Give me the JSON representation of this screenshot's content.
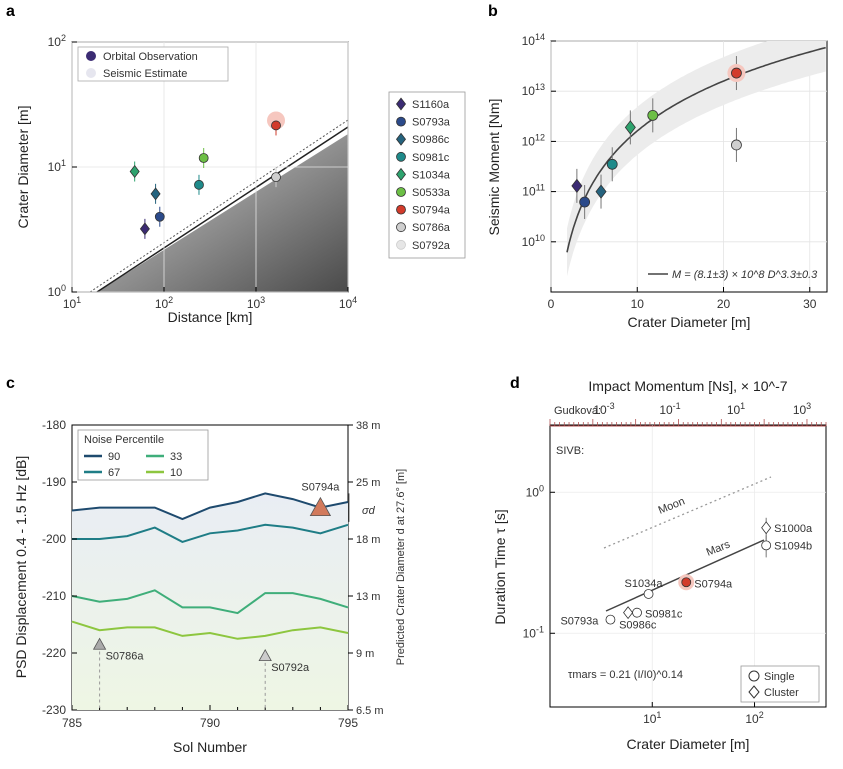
{
  "panels": {
    "a": "a",
    "b": "b",
    "c": "c",
    "d": "d"
  },
  "chart_data": [
    {
      "id": "a",
      "type": "scatter",
      "xscale": "log",
      "yscale": "log",
      "xlim": [
        10,
        10000
      ],
      "ylim": [
        1,
        100
      ],
      "xlabel": "Distance [km]",
      "ylabel": "Crater Diameter [m]",
      "xticks": [
        "10^1",
        "10^2",
        "10^3",
        "10^4"
      ],
      "yticks": [
        "10^0",
        "10^1",
        "10^2"
      ],
      "legend": [
        "Orbital Observation",
        "Seismic Estimate"
      ],
      "legend_position": "top-left",
      "points": [
        {
          "name": "S1160a",
          "x": 62,
          "y": 3.2,
          "marker": "diamond",
          "color": "#3b2b73"
        },
        {
          "name": "S0793a",
          "x": 90,
          "y": 4.0,
          "marker": "circle",
          "color": "#2b4a8a"
        },
        {
          "name": "S0986c",
          "x": 81,
          "y": 6.1,
          "marker": "diamond",
          "color": "#25637e"
        },
        {
          "name": "S0981c",
          "x": 240,
          "y": 7.2,
          "marker": "circle",
          "color": "#1f8a8a"
        },
        {
          "name": "S1034a",
          "x": 48,
          "y": 9.2,
          "marker": "diamond",
          "color": "#2ea36e"
        },
        {
          "name": "S0533a",
          "x": 270,
          "y": 11.8,
          "marker": "circle",
          "color": "#6cbf45"
        },
        {
          "name": "S0794a",
          "x": 1650,
          "y": 21.5,
          "marker": "circle",
          "color": "#d23b2b"
        },
        {
          "name": "S0786a",
          "x": 1650,
          "y": 8.3,
          "marker": "circle",
          "color": "#cfcfcf"
        }
      ]
    },
    {
      "id": "b",
      "type": "scatter",
      "yscale": "log",
      "xlim": [
        0,
        32
      ],
      "ylim": [
        1000000000.0,
        100000000000000.0
      ],
      "xlabel": "Crater Diameter [m]",
      "ylabel": "Seismic Moment [Nm]",
      "xticks": [
        "0",
        "10",
        "20",
        "30"
      ],
      "yticks": [
        "10^10",
        "10^11",
        "10^12",
        "10^13",
        "10^14"
      ],
      "fit_label": "M = (8.1±3) × 10^8 D^3.3±0.3",
      "fit": {
        "a": 810000000.0,
        "b": 3.3
      },
      "points": [
        {
          "name": "S1160a",
          "x": 3.0,
          "y": 130000000000.0,
          "marker": "diamond",
          "color": "#3b2b73"
        },
        {
          "name": "S0793a",
          "x": 3.9,
          "y": 62000000000.0,
          "marker": "circle",
          "color": "#2b4a8a"
        },
        {
          "name": "S0986c",
          "x": 5.8,
          "y": 100000000000.0,
          "marker": "diamond",
          "color": "#25637e"
        },
        {
          "name": "S0981c",
          "x": 7.1,
          "y": 350000000000.0,
          "marker": "circle",
          "color": "#1f8a8a"
        },
        {
          "name": "S1034a",
          "x": 9.2,
          "y": 1900000000000.0,
          "marker": "diamond",
          "color": "#2ea36e"
        },
        {
          "name": "S0533a",
          "x": 11.8,
          "y": 3300000000000.0,
          "marker": "circle",
          "color": "#6cbf45"
        },
        {
          "name": "S0794a",
          "x": 21.5,
          "y": 23000000000000.0,
          "marker": "circle",
          "color": "#d23b2b"
        },
        {
          "name": "S0786a",
          "x": 21.5,
          "y": 850000000000.0,
          "marker": "circle",
          "color": "#cfcfcf"
        }
      ]
    },
    {
      "id": "c",
      "type": "line",
      "xlim": [
        785,
        795
      ],
      "ylim": [
        -230,
        -180
      ],
      "xlabel": "Sol Number",
      "ylabel": "PSD Displacement 0.4 - 1.5 Hz [dB]",
      "ylabel_right": "Predicted Crater Diameter d at 27.6° [m]",
      "xticks": [
        "785",
        "790",
        "795"
      ],
      "yticks": [
        "-180",
        "-190",
        "-200",
        "-210",
        "-220",
        "-230"
      ],
      "right_ticks": [
        "38 m",
        "25 m",
        "18 m",
        "13 m",
        "9 m",
        "6.5 m"
      ],
      "legend_title": "Noise Percentile",
      "legend_position": "top-left",
      "sigma_label": "σd",
      "x": [
        785,
        786,
        787,
        788,
        789,
        790,
        791,
        792,
        793,
        794,
        795
      ],
      "series": [
        {
          "name": "90",
          "color": "#1e4a6e",
          "values": [
            -195,
            -194.5,
            -194.5,
            -194.5,
            -196.5,
            -194.5,
            -193.5,
            -192,
            -193,
            -194.5,
            -193.5
          ]
        },
        {
          "name": "67",
          "color": "#1f7d86",
          "values": [
            -200,
            -200,
            -199.5,
            -198,
            -200.5,
            -199,
            -198.5,
            -197.5,
            -198,
            -199,
            -197.5
          ]
        },
        {
          "name": "33",
          "color": "#3fae7a",
          "values": [
            -210,
            -211,
            -210.5,
            -209,
            -212,
            -212,
            -213,
            -209.5,
            -209.5,
            -210.5,
            -212
          ]
        },
        {
          "name": "10",
          "color": "#8dc63f",
          "values": [
            -214.5,
            -216,
            -215.5,
            -215.5,
            -217,
            -216.5,
            -217.5,
            -217,
            -216,
            -215.5,
            -216.5
          ]
        }
      ],
      "events": [
        {
          "name": "S0794a",
          "x": 794,
          "y": -194.5,
          "color": "#d27a5c",
          "label_color": "#cc3b2b"
        },
        {
          "name": "S0786a",
          "x": 786,
          "y": -218.5,
          "color": "#aaaaaa",
          "label_color": "#8c8c8c"
        },
        {
          "name": "S0792a",
          "x": 792,
          "y": -220.5,
          "color": "#cccccc",
          "label_color": "#aaaaaa"
        }
      ]
    },
    {
      "id": "d",
      "type": "scatter",
      "xscale": "log",
      "yscale": "log",
      "xlim": [
        1,
        500
      ],
      "ylim": [
        0.03,
        3
      ],
      "xlabel": "Crater Diameter [m]",
      "ylabel": "Duration Time τ [s]",
      "top_axis_label": "Impact Momentum [Ns], × 10^-7",
      "top_axis_name": "Gudkova:",
      "top_ticks": [
        "10^-3",
        "10^-1",
        "10^1",
        "10^3"
      ],
      "sivb_label": "SIVB:",
      "xticks": [
        "10^1",
        "10^2"
      ],
      "yticks": [
        "10^-1",
        "10^0"
      ],
      "moon_label": "Moon",
      "mars_label": "Mars",
      "formula": "τmars = 0.21 (I/I0)^0.14",
      "legend": [
        "Single",
        "Cluster"
      ],
      "legend_position": "bottom-right",
      "points": [
        {
          "name": "S0793a",
          "x": 3.9,
          "y": 0.125,
          "marker": "circle"
        },
        {
          "name": "S0986c",
          "x": 5.8,
          "y": 0.14,
          "marker": "diamond"
        },
        {
          "name": "S0981c",
          "x": 7.1,
          "y": 0.14,
          "marker": "circle"
        },
        {
          "name": "S1034a",
          "x": 9.2,
          "y": 0.19,
          "marker": "circle"
        },
        {
          "name": "S0794a",
          "x": 21.5,
          "y": 0.23,
          "marker": "circle"
        },
        {
          "name": "S1000a",
          "x": 130,
          "y": 0.56,
          "marker": "diamond"
        },
        {
          "name": "S1094b",
          "x": 130,
          "y": 0.42,
          "marker": "circle"
        }
      ]
    }
  ],
  "legend_events": [
    {
      "name": "S1160a",
      "marker": "diamond",
      "color": "#3b2b73"
    },
    {
      "name": "S0793a",
      "marker": "circle",
      "color": "#2b4a8a"
    },
    {
      "name": "S0986c",
      "marker": "diamond",
      "color": "#25637e"
    },
    {
      "name": "S0981c",
      "marker": "circle",
      "color": "#1f8a8a"
    },
    {
      "name": "S1034a",
      "marker": "diamond",
      "color": "#2ea36e"
    },
    {
      "name": "S0533a",
      "marker": "circle",
      "color": "#6cbf45"
    },
    {
      "name": "S0794a",
      "marker": "circle",
      "color": "#d23b2b"
    },
    {
      "name": "S0786a",
      "marker": "circle",
      "color": "#cfcfcf"
    },
    {
      "name": "S0792a",
      "marker": "circle",
      "color": "#e6e6e6"
    }
  ]
}
